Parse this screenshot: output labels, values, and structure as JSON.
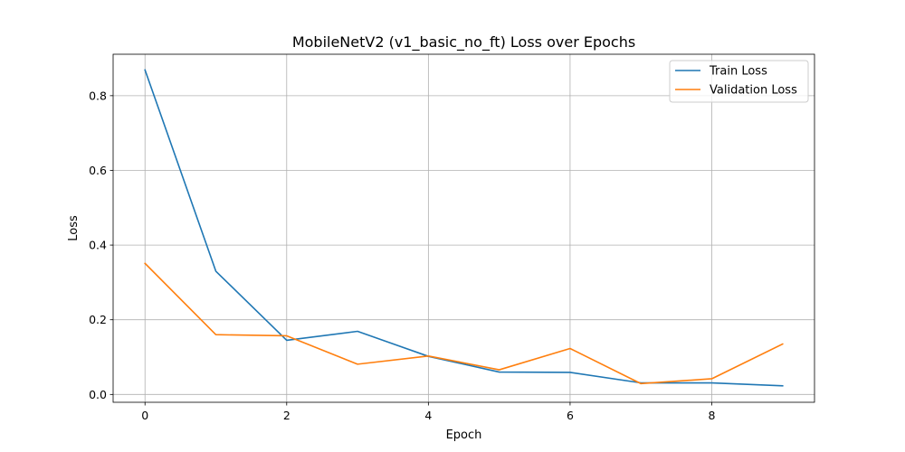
{
  "chart_data": {
    "type": "line",
    "title": "MobileNetV2 (v1_basic_no_ft) Loss over Epochs",
    "xlabel": "Epoch",
    "ylabel": "Loss",
    "xlim": [
      -0.45,
      9.45
    ],
    "ylim": [
      -0.021,
      0.911
    ],
    "xticks": [
      0,
      2,
      4,
      6,
      8
    ],
    "yticks": [
      0.0,
      0.2,
      0.4,
      0.6,
      0.8
    ],
    "xtick_labels": [
      "0",
      "2",
      "4",
      "6",
      "8"
    ],
    "ytick_labels": [
      "0.0",
      "0.2",
      "0.4",
      "0.6",
      "0.8"
    ],
    "grid": true,
    "legend": "top-right",
    "x": [
      0,
      1,
      2,
      3,
      4,
      5,
      6,
      7,
      8,
      9
    ],
    "series": [
      {
        "name": "Train Loss",
        "color": "#1f77b4",
        "values": [
          0.869,
          0.33,
          0.145,
          0.169,
          0.102,
          0.06,
          0.059,
          0.031,
          0.031,
          0.023
        ]
      },
      {
        "name": "Validation Loss",
        "color": "#ff7f0e",
        "values": [
          0.351,
          0.16,
          0.157,
          0.081,
          0.103,
          0.066,
          0.123,
          0.029,
          0.042,
          0.135
        ]
      }
    ]
  }
}
